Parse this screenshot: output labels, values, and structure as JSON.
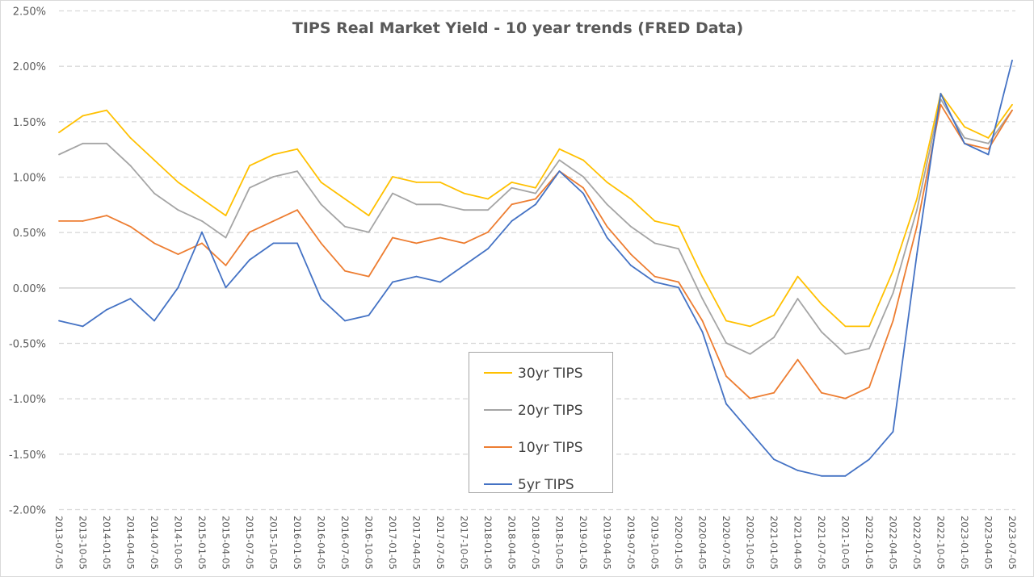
{
  "chart_data": {
    "type": "line",
    "title": "TIPS Real Market Yield - 10 year trends (FRED Data)",
    "xlabel": "",
    "ylabel": "",
    "ylim": [
      -2.0,
      2.5
    ],
    "y_ticks": [
      2.5,
      2.0,
      1.5,
      1.0,
      0.5,
      0.0,
      -0.5,
      -1.0,
      -1.5,
      -2.0
    ],
    "y_tick_labels": [
      "2.50%",
      "2.00%",
      "1.50%",
      "1.00%",
      "0.50%",
      "0.00%",
      "-0.50%",
      "-1.00%",
      "-1.50%",
      "-2.00%"
    ],
    "grid": "horizontal dashed",
    "legend_position": "bottom-center",
    "x": [
      "2013-07-05",
      "2013-10-05",
      "2014-01-05",
      "2014-04-05",
      "2014-07-05",
      "2014-10-05",
      "2015-01-05",
      "2015-04-05",
      "2015-07-05",
      "2015-10-05",
      "2016-01-05",
      "2016-04-05",
      "2016-07-05",
      "2016-10-05",
      "2017-01-05",
      "2017-04-05",
      "2017-07-05",
      "2017-10-05",
      "2018-01-05",
      "2018-04-05",
      "2018-07-05",
      "2018-10-05",
      "2019-01-05",
      "2019-04-05",
      "2019-07-05",
      "2019-10-05",
      "2020-01-05",
      "2020-04-05",
      "2020-07-05",
      "2020-10-05",
      "2021-01-05",
      "2021-04-05",
      "2021-07-05",
      "2021-10-05",
      "2022-01-05",
      "2022-04-05",
      "2022-07-05",
      "2022-10-05",
      "2023-01-05",
      "2023-04-05",
      "2023-07-05"
    ],
    "series": [
      {
        "name": "30yr TIPS",
        "color": "#FFC000",
        "values": [
          1.4,
          1.55,
          1.6,
          1.35,
          1.15,
          0.95,
          0.8,
          0.65,
          1.1,
          1.2,
          1.25,
          0.95,
          0.8,
          0.65,
          1.0,
          0.95,
          0.95,
          0.85,
          0.8,
          0.95,
          0.9,
          1.25,
          1.15,
          0.95,
          0.8,
          0.6,
          0.55,
          0.1,
          -0.3,
          -0.35,
          -0.25,
          0.1,
          -0.15,
          -0.35,
          -0.35,
          0.15,
          0.8,
          1.75,
          1.45,
          1.35,
          1.65
        ]
      },
      {
        "name": "20yr TIPS",
        "color": "#A5A5A5",
        "values": [
          1.2,
          1.3,
          1.3,
          1.1,
          0.85,
          0.7,
          0.6,
          0.45,
          0.9,
          1.0,
          1.05,
          0.75,
          0.55,
          0.5,
          0.85,
          0.75,
          0.75,
          0.7,
          0.7,
          0.9,
          0.85,
          1.15,
          1.0,
          0.75,
          0.55,
          0.4,
          0.35,
          -0.1,
          -0.5,
          -0.6,
          -0.45,
          -0.1,
          -0.4,
          -0.6,
          -0.55,
          -0.05,
          0.7,
          1.7,
          1.35,
          1.3,
          1.6
        ]
      },
      {
        "name": "10yr TIPS",
        "color": "#ED7D31",
        "values": [
          0.6,
          0.6,
          0.65,
          0.55,
          0.4,
          0.3,
          0.4,
          0.2,
          0.5,
          0.6,
          0.7,
          0.4,
          0.15,
          0.1,
          0.45,
          0.4,
          0.45,
          0.4,
          0.5,
          0.75,
          0.8,
          1.05,
          0.9,
          0.55,
          0.3,
          0.1,
          0.05,
          -0.3,
          -0.8,
          -1.0,
          -0.95,
          -0.65,
          -0.95,
          -1.0,
          -0.9,
          -0.3,
          0.55,
          1.65,
          1.3,
          1.25,
          1.6
        ]
      },
      {
        "name": "5yr TIPS",
        "color": "#4472C4",
        "values": [
          -0.3,
          -0.35,
          -0.2,
          -0.1,
          -0.3,
          0.0,
          0.5,
          0.0,
          0.25,
          0.4,
          0.4,
          -0.1,
          -0.3,
          -0.25,
          0.05,
          0.1,
          0.05,
          0.2,
          0.35,
          0.6,
          0.75,
          1.05,
          0.85,
          0.45,
          0.2,
          0.05,
          0.0,
          -0.4,
          -1.05,
          -1.3,
          -1.55,
          -1.65,
          -1.7,
          -1.7,
          -1.55,
          -1.3,
          0.3,
          1.75,
          1.3,
          1.2,
          2.05
        ]
      }
    ]
  }
}
